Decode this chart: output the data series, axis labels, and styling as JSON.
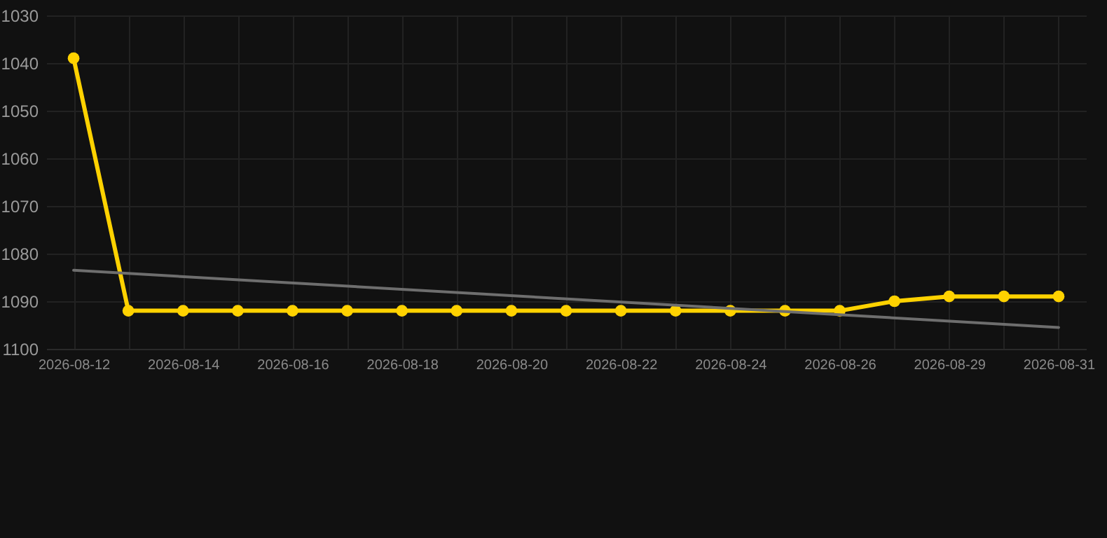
{
  "chart_data": {
    "type": "line",
    "categories": [
      "2026-08-12",
      null,
      "2026-08-14",
      null,
      "2026-08-16",
      null,
      "2026-08-18",
      null,
      "2026-08-20",
      null,
      "2026-08-22",
      null,
      "2026-08-24",
      null,
      "2026-08-26",
      null,
      "2026-08-29",
      null,
      "2026-08-31"
    ],
    "series": [
      {
        "color": "#ffd200",
        "values": [
          1039,
          1092,
          1092,
          1092,
          1092,
          1092,
          1092,
          1092,
          1092,
          1092,
          1092,
          1092,
          1092,
          1092,
          1092,
          1090,
          1089,
          1089,
          1089
        ]
      },
      {
        "type": "line",
        "color": "#6e6e6e",
        "marker": "none",
        "values": [
          1083.5,
          null,
          null,
          null,
          null,
          null,
          null,
          null,
          null,
          null,
          null,
          null,
          null,
          null,
          null,
          null,
          null,
          null,
          1095.5
        ]
      }
    ],
    "ylim": [
      1100,
      1030
    ],
    "yticks": [
      1030,
      1040,
      1050,
      1060,
      1070,
      1080,
      1090,
      1100
    ],
    "grid": true,
    "marker": "circle"
  }
}
